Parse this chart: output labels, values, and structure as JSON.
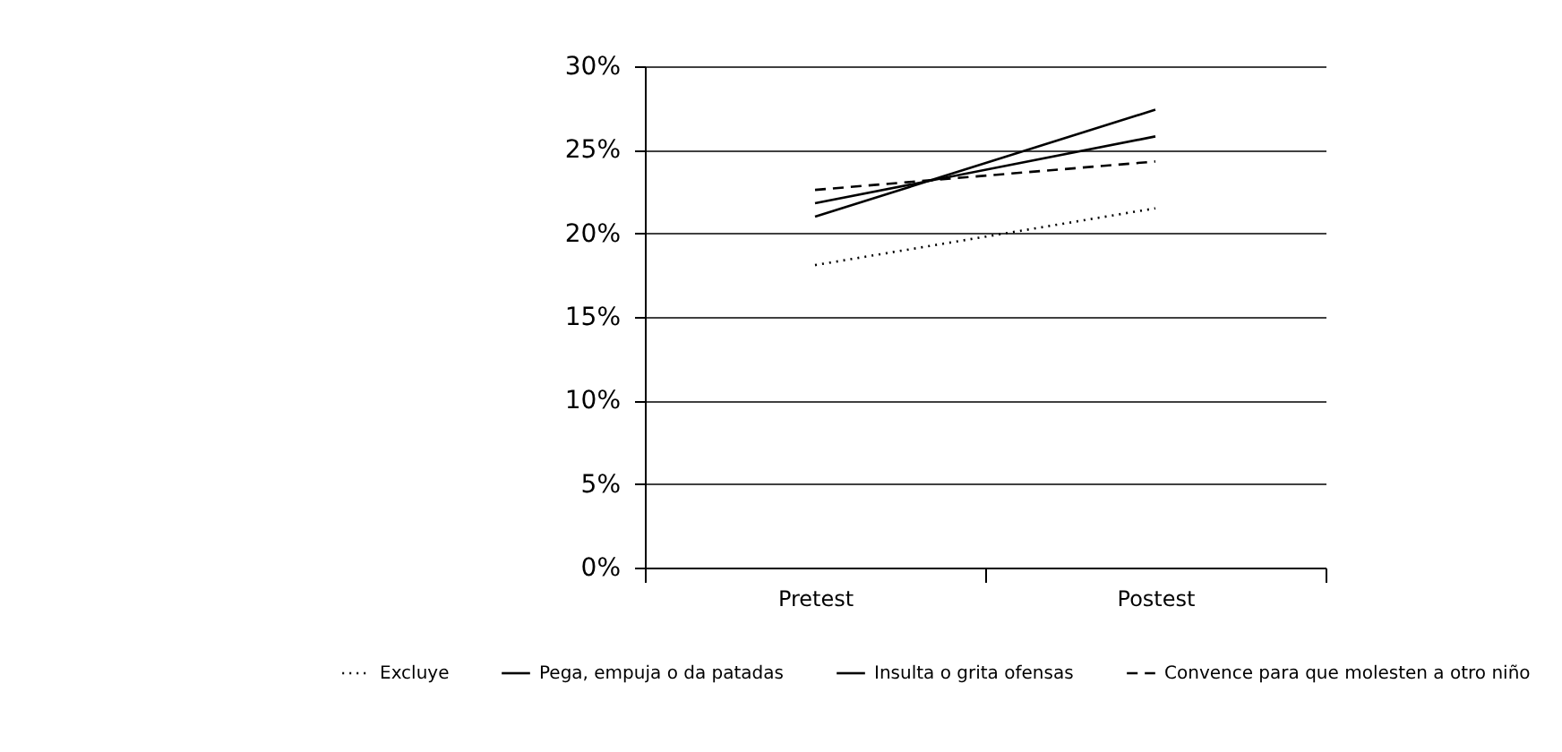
{
  "chart_data": {
    "type": "line",
    "categories": [
      "Pretest",
      "Postest"
    ],
    "series": [
      {
        "name": "Excluye",
        "color": "#000000",
        "line_style": "dotted",
        "values": [
          18.1,
          21.5
        ]
      },
      {
        "name": "Pega, empuja o da patadas",
        "color": "#000000",
        "line_style": "solid",
        "values": [
          21.8,
          25.8
        ]
      },
      {
        "name": "Insulta o grita ofensas",
        "color": "#000000",
        "line_style": "solid",
        "values": [
          21.0,
          27.4
        ]
      },
      {
        "name": "Convence para que molesten a otro niño",
        "color": "#000000",
        "line_style": "dashed",
        "values": [
          22.6,
          24.3
        ]
      }
    ],
    "ylim": [
      0,
      30
    ],
    "yticks": [
      {
        "value": 0,
        "label": "0%"
      },
      {
        "value": 5,
        "label": "5%"
      },
      {
        "value": 10,
        "label": "10%"
      },
      {
        "value": 15,
        "label": "15%"
      },
      {
        "value": 20,
        "label": "20%"
      },
      {
        "value": 25,
        "label": "25%"
      },
      {
        "value": 30,
        "label": "30%"
      }
    ],
    "grid": "y",
    "legend": "bottom",
    "marker": "none"
  }
}
